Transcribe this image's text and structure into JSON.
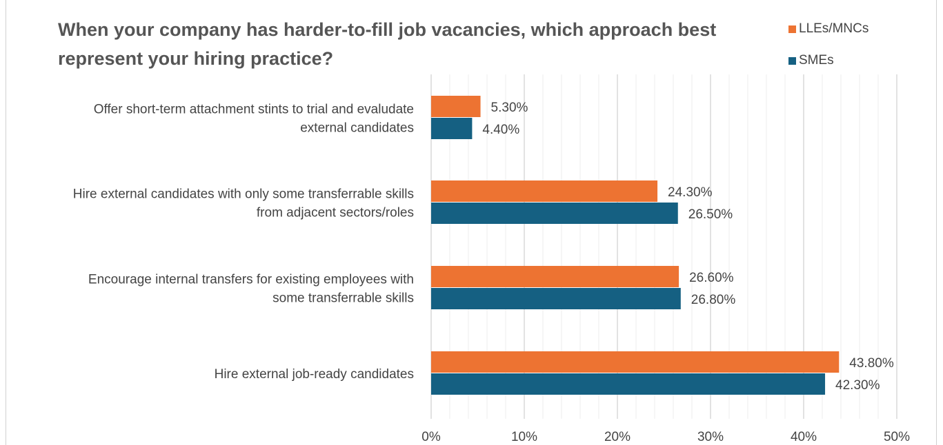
{
  "chart_data": {
    "type": "bar",
    "orientation": "horizontal",
    "title": "When your company has harder-to-fill job vacancies, which approach best represent your hiring practice?",
    "categories": [
      [
        "Offer short-term attachment stints to trial and evaludate",
        "external candidates"
      ],
      [
        "Hire external candidates with only some transferrable skills",
        "from adjacent sectors/roles"
      ],
      [
        "Encourage internal transfers for existing employees with",
        "some transferrable skills"
      ],
      [
        "Hire external job-ready candidates"
      ]
    ],
    "series": [
      {
        "name": "LLEs/MNCs",
        "color": "#ED7332",
        "values": [
          5.3,
          24.3,
          26.6,
          43.8
        ],
        "labels": [
          "5.30%",
          "24.30%",
          "26.60%",
          "43.80%"
        ]
      },
      {
        "name": "SMEs",
        "color": "#156082",
        "values": [
          4.4,
          26.5,
          26.8,
          42.3
        ],
        "labels": [
          "4.40%",
          "26.50%",
          "26.80%",
          "42.30%"
        ]
      }
    ],
    "xlim": [
      0,
      50
    ],
    "x_ticks": [
      "0%",
      "10%",
      "20%",
      "30%",
      "40%",
      "50%"
    ],
    "grid": true,
    "legend_position": "top-right"
  }
}
